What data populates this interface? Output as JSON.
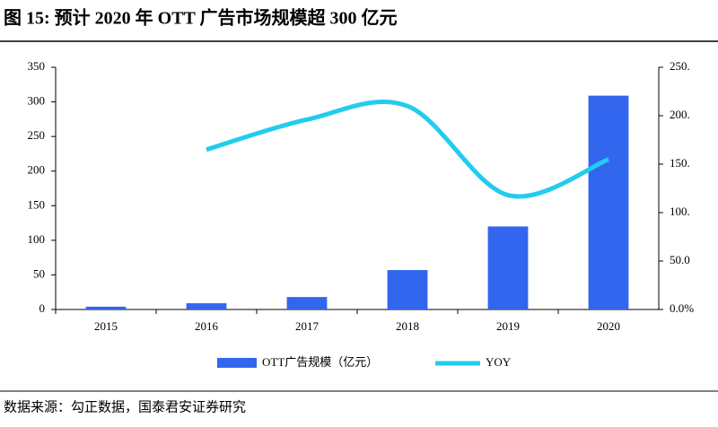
{
  "title": "图 15:  预计 2020 年 OTT 广告市场规模超 300 亿元",
  "source": "数据来源：勾正数据，国泰君安证券研究",
  "chart_data": {
    "type": "bar-line",
    "categories": [
      "2015",
      "2016",
      "2017",
      "2018",
      "2019",
      "2020"
    ],
    "series": [
      {
        "name": "OTT广告规模（亿元）",
        "type": "bar",
        "color": "#3366ee",
        "values": [
          4,
          9,
          18,
          57,
          120,
          309
        ]
      },
      {
        "name": "YOY",
        "type": "line",
        "axis": "y2",
        "color": "#22ccee",
        "values": [
          null,
          165,
          196,
          210,
          118,
          155
        ]
      }
    ],
    "ylim": [
      0,
      350
    ],
    "yticks": [
      0,
      50,
      100,
      150,
      200,
      250,
      300,
      350
    ],
    "y2lim": [
      0,
      250
    ],
    "y2ticks": [
      {
        "value": 0,
        "label": "0.0%"
      },
      {
        "value": 50,
        "label": "50.0"
      },
      {
        "value": 100,
        "label": "100."
      },
      {
        "value": 150,
        "label": "150."
      },
      {
        "value": 200,
        "label": "200."
      },
      {
        "value": 250,
        "label": "250."
      }
    ]
  }
}
